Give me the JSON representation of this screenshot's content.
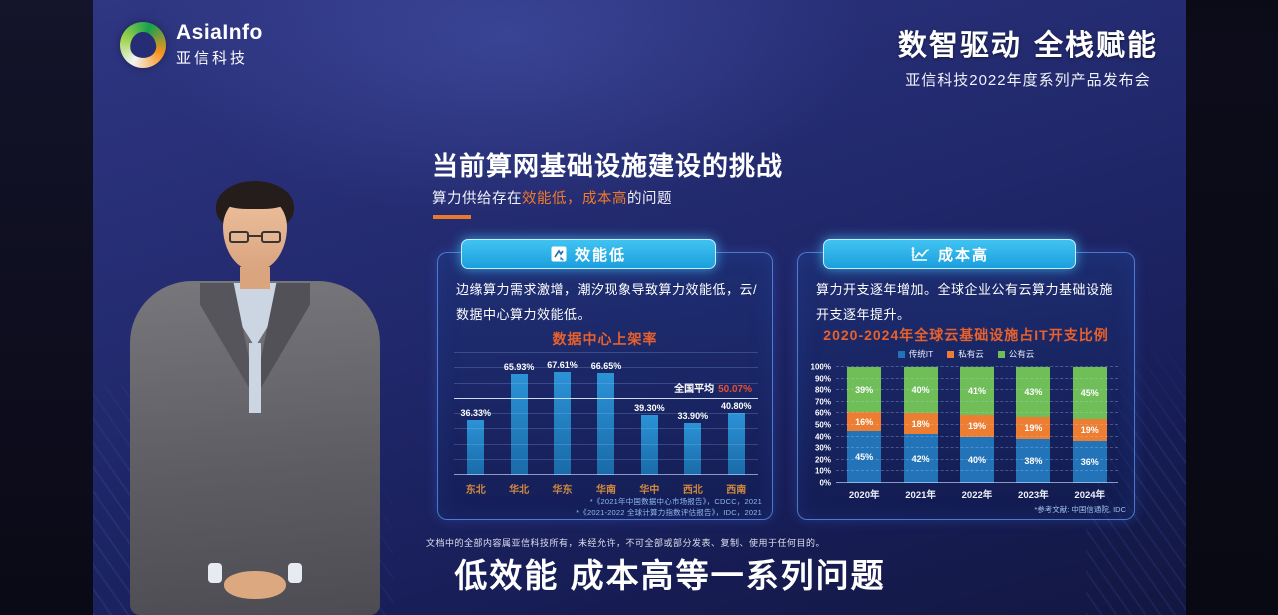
{
  "header": {
    "logo_title": "AsiaInfo",
    "logo_subtitle": "亚信科技",
    "slogan": "数智驱动 全栈赋能",
    "event": "亚信科技2022年度系列产品发布会"
  },
  "slide": {
    "title": "当前算网基础设施建设的挑战",
    "subtitle": {
      "p1": "算力供给存在",
      "h1": "效能低，",
      "h2": "成本高",
      "p2": "的问题"
    }
  },
  "left_panel": {
    "header_label": "效能低",
    "description": "边缘算力需求激增，潮汐现象导致算力效能低，云/数据中心算力效能低。",
    "footnotes": [
      "*《2021年中国数据中心市场报告》，CDCC，2021",
      "*《2021-2022 全球计算力指数评估报告》，IDC，2021"
    ]
  },
  "right_panel": {
    "header_label": "成本高",
    "description": "算力开支逐年增加。全球企业公有云算力基础设施开支逐年提升。",
    "footnote": "*参考文献: 中国信通院, IDC"
  },
  "footer": {
    "disclaimer": "文档中的全部内容属亚信科技所有，未经允许，不可全部或部分发表、复制、使用于任何目的。",
    "caption": "低效能 成本高等一系列问题"
  },
  "chart_data": [
    {
      "type": "bar",
      "title": "数据中心上架率",
      "categories": [
        "东北",
        "华北",
        "华东",
        "华南",
        "华中",
        "西北",
        "西南"
      ],
      "values": [
        36.33,
        65.93,
        67.61,
        66.65,
        39.3,
        33.9,
        40.8
      ],
      "value_labels": [
        "36.33%",
        "65.93%",
        "67.61%",
        "66.65%",
        "39.30%",
        "33.90%",
        "40.80%"
      ],
      "average": 50.07,
      "average_label": "全国平均",
      "average_value": "50.07%",
      "ylim": [
        0,
        80
      ],
      "grid_step": 10,
      "grid": true,
      "bar_color": "#1f7fc2",
      "xlabel": "",
      "ylabel": ""
    },
    {
      "type": "stacked-bar",
      "title": "2020-2024年全球云基础设施占IT开支比例",
      "categories": [
        "2020年",
        "2021年",
        "2022年",
        "2023年",
        "2024年"
      ],
      "series": [
        {
          "name": "传统IT",
          "color": "#2273b8",
          "values": [
            45,
            42,
            40,
            38,
            36
          ]
        },
        {
          "name": "私有云",
          "color": "#ed7d31",
          "values": [
            16,
            18,
            19,
            19,
            19
          ]
        },
        {
          "name": "公有云",
          "color": "#6fbe58",
          "values": [
            39,
            40,
            41,
            43,
            45
          ]
        }
      ],
      "ylim": [
        0,
        100
      ],
      "ytick_step": 10,
      "ytick_suffix": "%",
      "legend_position": "top",
      "grid": true,
      "xlabel": "",
      "ylabel": ""
    }
  ]
}
